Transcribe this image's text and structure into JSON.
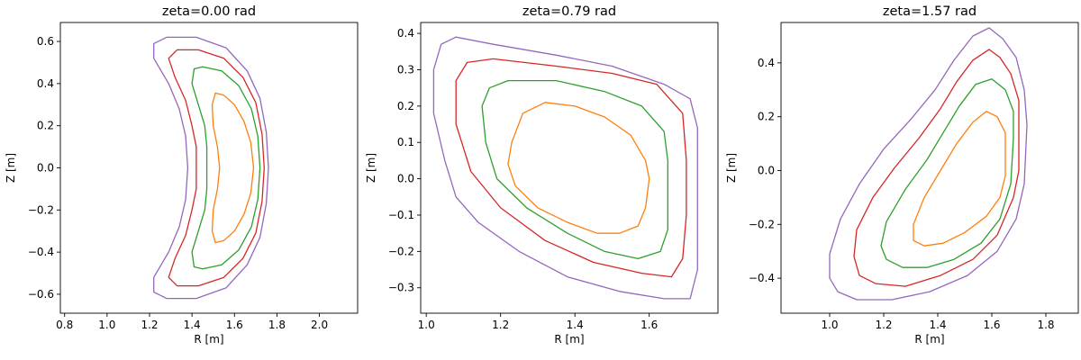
{
  "chart_data": [
    {
      "type": "line",
      "title": "zeta=0.00 rad",
      "xlabel": "R [m]",
      "ylabel": "Z [m]",
      "xlim": [
        0.78,
        2.18
      ],
      "ylim": [
        -0.69,
        0.69
      ],
      "xticks": [
        "0.8",
        "1.0",
        "1.2",
        "1.4",
        "1.6",
        "1.8",
        "2.0"
      ],
      "yticks": [
        "−0.6",
        "−0.4",
        "−0.2",
        "0.0",
        "0.2",
        "0.4",
        "0.6"
      ],
      "grid": false,
      "series": [
        {
          "color": "#ff7f0e",
          "points": [
            [
              1.69,
              0.0
            ],
            [
              1.677,
              0.12
            ],
            [
              1.645,
              0.22
            ],
            [
              1.6,
              0.3
            ],
            [
              1.55,
              0.345
            ],
            [
              1.51,
              0.355
            ],
            [
              1.495,
              0.3
            ],
            [
              1.5,
              0.2
            ],
            [
              1.52,
              0.1
            ],
            [
              1.53,
              0.0
            ],
            [
              1.52,
              -0.1
            ],
            [
              1.5,
              -0.2
            ],
            [
              1.495,
              -0.3
            ],
            [
              1.51,
              -0.355
            ],
            [
              1.55,
              -0.345
            ],
            [
              1.6,
              -0.3
            ],
            [
              1.645,
              -0.22
            ],
            [
              1.677,
              -0.12
            ],
            [
              1.69,
              0.0
            ]
          ]
        },
        {
          "color": "#2ca02c",
          "points": [
            [
              1.72,
              0.0
            ],
            [
              1.71,
              0.15
            ],
            [
              1.68,
              0.28
            ],
            [
              1.62,
              0.39
            ],
            [
              1.54,
              0.46
            ],
            [
              1.45,
              0.48
            ],
            [
              1.41,
              0.47
            ],
            [
              1.4,
              0.4
            ],
            [
              1.43,
              0.3
            ],
            [
              1.46,
              0.2
            ],
            [
              1.47,
              0.1
            ],
            [
              1.47,
              0.0
            ],
            [
              1.47,
              -0.1
            ],
            [
              1.46,
              -0.2
            ],
            [
              1.43,
              -0.3
            ],
            [
              1.4,
              -0.4
            ],
            [
              1.41,
              -0.47
            ],
            [
              1.45,
              -0.48
            ],
            [
              1.54,
              -0.46
            ],
            [
              1.62,
              -0.39
            ],
            [
              1.68,
              -0.28
            ],
            [
              1.71,
              -0.15
            ],
            [
              1.72,
              0.0
            ]
          ]
        },
        {
          "color": "#d62728",
          "points": [
            [
              1.74,
              0.0
            ],
            [
              1.73,
              0.16
            ],
            [
              1.7,
              0.31
            ],
            [
              1.64,
              0.43
            ],
            [
              1.55,
              0.52
            ],
            [
              1.43,
              0.56
            ],
            [
              1.33,
              0.56
            ],
            [
              1.29,
              0.52
            ],
            [
              1.32,
              0.43
            ],
            [
              1.37,
              0.32
            ],
            [
              1.4,
              0.2
            ],
            [
              1.42,
              0.1
            ],
            [
              1.42,
              0.0
            ],
            [
              1.42,
              -0.1
            ],
            [
              1.4,
              -0.2
            ],
            [
              1.37,
              -0.32
            ],
            [
              1.32,
              -0.43
            ],
            [
              1.29,
              -0.52
            ],
            [
              1.33,
              -0.56
            ],
            [
              1.43,
              -0.56
            ],
            [
              1.55,
              -0.52
            ],
            [
              1.64,
              -0.43
            ],
            [
              1.7,
              -0.31
            ],
            [
              1.73,
              -0.16
            ],
            [
              1.74,
              0.0
            ]
          ]
        },
        {
          "color": "#9467bd",
          "points": [
            [
              1.76,
              0.0
            ],
            [
              1.75,
              0.17
            ],
            [
              1.72,
              0.33
            ],
            [
              1.66,
              0.46
            ],
            [
              1.56,
              0.57
            ],
            [
              1.42,
              0.62
            ],
            [
              1.28,
              0.62
            ],
            [
              1.22,
              0.59
            ],
            [
              1.22,
              0.52
            ],
            [
              1.29,
              0.4
            ],
            [
              1.34,
              0.28
            ],
            [
              1.37,
              0.15
            ],
            [
              1.38,
              0.0
            ],
            [
              1.37,
              -0.15
            ],
            [
              1.34,
              -0.28
            ],
            [
              1.29,
              -0.4
            ],
            [
              1.22,
              -0.52
            ],
            [
              1.22,
              -0.59
            ],
            [
              1.28,
              -0.62
            ],
            [
              1.42,
              -0.62
            ],
            [
              1.56,
              -0.57
            ],
            [
              1.66,
              -0.46
            ],
            [
              1.72,
              -0.33
            ],
            [
              1.75,
              -0.17
            ],
            [
              1.76,
              0.0
            ]
          ]
        }
      ]
    },
    {
      "type": "line",
      "title": "zeta=0.79 rad",
      "xlabel": "R [m]",
      "ylabel": "Z [m]",
      "xlim": [
        0.985,
        1.785
      ],
      "ylim": [
        -0.37,
        0.43
      ],
      "xticks": [
        "1.0",
        "1.2",
        "1.4",
        "1.6"
      ],
      "yticks": [
        "−0.3",
        "−0.2",
        "−0.1",
        "0.0",
        "0.1",
        "0.2",
        "0.3",
        "0.4"
      ],
      "grid": false,
      "series": [
        {
          "color": "#ff7f0e",
          "points": [
            [
              1.59,
              -0.08
            ],
            [
              1.6,
              0.0
            ],
            [
              1.59,
              0.05
            ],
            [
              1.55,
              0.12
            ],
            [
              1.48,
              0.17
            ],
            [
              1.4,
              0.2
            ],
            [
              1.32,
              0.21
            ],
            [
              1.26,
              0.18
            ],
            [
              1.23,
              0.1
            ],
            [
              1.22,
              0.04
            ],
            [
              1.24,
              -0.02
            ],
            [
              1.3,
              -0.08
            ],
            [
              1.38,
              -0.12
            ],
            [
              1.46,
              -0.15
            ],
            [
              1.52,
              -0.15
            ],
            [
              1.57,
              -0.13
            ],
            [
              1.59,
              -0.08
            ]
          ]
        },
        {
          "color": "#2ca02c",
          "points": [
            [
              1.65,
              -0.07
            ],
            [
              1.65,
              0.05
            ],
            [
              1.64,
              0.13
            ],
            [
              1.58,
              0.2
            ],
            [
              1.48,
              0.24
            ],
            [
              1.35,
              0.27
            ],
            [
              1.22,
              0.27
            ],
            [
              1.17,
              0.25
            ],
            [
              1.15,
              0.2
            ],
            [
              1.16,
              0.1
            ],
            [
              1.19,
              0.0
            ],
            [
              1.27,
              -0.08
            ],
            [
              1.38,
              -0.15
            ],
            [
              1.48,
              -0.2
            ],
            [
              1.57,
              -0.22
            ],
            [
              1.63,
              -0.2
            ],
            [
              1.65,
              -0.14
            ],
            [
              1.65,
              -0.07
            ]
          ]
        },
        {
          "color": "#d62728",
          "points": [
            [
              1.7,
              -0.1
            ],
            [
              1.7,
              0.05
            ],
            [
              1.69,
              0.18
            ],
            [
              1.62,
              0.26
            ],
            [
              1.5,
              0.29
            ],
            [
              1.35,
              0.31
            ],
            [
              1.18,
              0.33
            ],
            [
              1.11,
              0.32
            ],
            [
              1.08,
              0.27
            ],
            [
              1.08,
              0.15
            ],
            [
              1.12,
              0.02
            ],
            [
              1.2,
              -0.08
            ],
            [
              1.32,
              -0.17
            ],
            [
              1.45,
              -0.23
            ],
            [
              1.58,
              -0.26
            ],
            [
              1.66,
              -0.27
            ],
            [
              1.69,
              -0.22
            ],
            [
              1.7,
              -0.1
            ]
          ]
        },
        {
          "color": "#9467bd",
          "points": [
            [
              1.73,
              -0.12
            ],
            [
              1.73,
              0.0
            ],
            [
              1.73,
              0.14
            ],
            [
              1.71,
              0.22
            ],
            [
              1.64,
              0.26
            ],
            [
              1.5,
              0.31
            ],
            [
              1.35,
              0.34
            ],
            [
              1.18,
              0.37
            ],
            [
              1.08,
              0.39
            ],
            [
              1.04,
              0.37
            ],
            [
              1.02,
              0.3
            ],
            [
              1.02,
              0.18
            ],
            [
              1.05,
              0.05
            ],
            [
              1.08,
              -0.05
            ],
            [
              1.14,
              -0.12
            ],
            [
              1.25,
              -0.2
            ],
            [
              1.38,
              -0.27
            ],
            [
              1.52,
              -0.31
            ],
            [
              1.64,
              -0.33
            ],
            [
              1.71,
              -0.33
            ],
            [
              1.73,
              -0.25
            ],
            [
              1.73,
              -0.12
            ]
          ]
        }
      ]
    },
    {
      "type": "line",
      "title": "zeta=1.57 rad",
      "xlabel": "R [m]",
      "ylabel": "Z [m]",
      "xlim": [
        0.82,
        1.92
      ],
      "ylim": [
        -0.53,
        0.55
      ],
      "xticks": [
        "1.0",
        "1.2",
        "1.4",
        "1.6",
        "1.8"
      ],
      "yticks": [
        "−0.4",
        "−0.2",
        "0.0",
        "0.2",
        "0.4"
      ],
      "grid": false,
      "series": [
        {
          "color": "#ff7f0e",
          "points": [
            [
              1.65,
              0.05
            ],
            [
              1.65,
              0.14
            ],
            [
              1.62,
              0.2
            ],
            [
              1.58,
              0.22
            ],
            [
              1.53,
              0.18
            ],
            [
              1.47,
              0.1
            ],
            [
              1.41,
              0.0
            ],
            [
              1.35,
              -0.1
            ],
            [
              1.31,
              -0.2
            ],
            [
              1.31,
              -0.26
            ],
            [
              1.35,
              -0.28
            ],
            [
              1.42,
              -0.27
            ],
            [
              1.5,
              -0.23
            ],
            [
              1.58,
              -0.17
            ],
            [
              1.63,
              -0.1
            ],
            [
              1.65,
              -0.02
            ],
            [
              1.65,
              0.05
            ]
          ]
        },
        {
          "color": "#2ca02c",
          "points": [
            [
              1.68,
              0.12
            ],
            [
              1.68,
              0.22
            ],
            [
              1.65,
              0.3
            ],
            [
              1.6,
              0.34
            ],
            [
              1.54,
              0.32
            ],
            [
              1.48,
              0.24
            ],
            [
              1.42,
              0.14
            ],
            [
              1.36,
              0.04
            ],
            [
              1.28,
              -0.07
            ],
            [
              1.21,
              -0.19
            ],
            [
              1.19,
              -0.28
            ],
            [
              1.21,
              -0.33
            ],
            [
              1.27,
              -0.36
            ],
            [
              1.36,
              -0.36
            ],
            [
              1.46,
              -0.33
            ],
            [
              1.56,
              -0.27
            ],
            [
              1.63,
              -0.18
            ],
            [
              1.67,
              -0.05
            ],
            [
              1.68,
              0.12
            ]
          ]
        },
        {
          "color": "#d62728",
          "points": [
            [
              1.7,
              0.12
            ],
            [
              1.7,
              0.26
            ],
            [
              1.67,
              0.36
            ],
            [
              1.63,
              0.42
            ],
            [
              1.59,
              0.45
            ],
            [
              1.53,
              0.41
            ],
            [
              1.47,
              0.33
            ],
            [
              1.41,
              0.23
            ],
            [
              1.33,
              0.12
            ],
            [
              1.24,
              0.01
            ],
            [
              1.16,
              -0.1
            ],
            [
              1.1,
              -0.22
            ],
            [
              1.09,
              -0.32
            ],
            [
              1.11,
              -0.39
            ],
            [
              1.17,
              -0.42
            ],
            [
              1.28,
              -0.43
            ],
            [
              1.41,
              -0.39
            ],
            [
              1.53,
              -0.33
            ],
            [
              1.62,
              -0.24
            ],
            [
              1.68,
              -0.1
            ],
            [
              1.7,
              0.0
            ],
            [
              1.7,
              0.12
            ]
          ]
        },
        {
          "color": "#9467bd",
          "points": [
            [
              1.73,
              0.17
            ],
            [
              1.72,
              0.3
            ],
            [
              1.69,
              0.42
            ],
            [
              1.64,
              0.49
            ],
            [
              1.59,
              0.53
            ],
            [
              1.53,
              0.5
            ],
            [
              1.46,
              0.41
            ],
            [
              1.39,
              0.3
            ],
            [
              1.3,
              0.19
            ],
            [
              1.2,
              0.08
            ],
            [
              1.11,
              -0.05
            ],
            [
              1.04,
              -0.18
            ],
            [
              1.0,
              -0.31
            ],
            [
              1.0,
              -0.4
            ],
            [
              1.03,
              -0.45
            ],
            [
              1.1,
              -0.48
            ],
            [
              1.23,
              -0.48
            ],
            [
              1.37,
              -0.45
            ],
            [
              1.51,
              -0.39
            ],
            [
              1.62,
              -0.3
            ],
            [
              1.69,
              -0.18
            ],
            [
              1.72,
              -0.05
            ],
            [
              1.73,
              0.17
            ]
          ]
        }
      ]
    }
  ]
}
